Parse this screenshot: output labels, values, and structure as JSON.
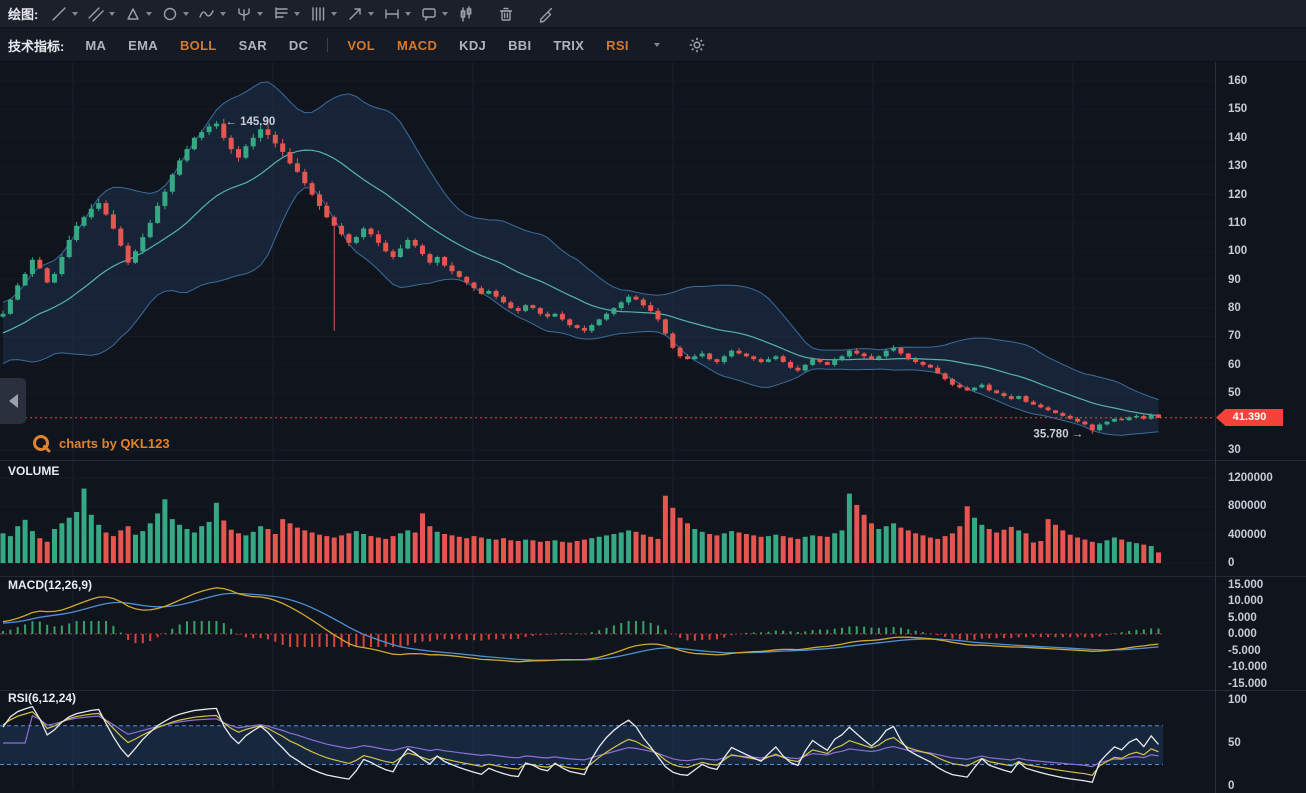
{
  "toolbar": {
    "drawing_label": "绘图:",
    "indicators_label": "技术指标:",
    "drawing_tools": [
      {
        "name": "trend-line",
        "caret": true
      },
      {
        "name": "parallel-lines",
        "caret": true
      },
      {
        "name": "polygon",
        "caret": true
      },
      {
        "name": "ellipse",
        "caret": true
      },
      {
        "name": "wave",
        "caret": true
      },
      {
        "name": "pitchfork",
        "caret": true
      },
      {
        "name": "horizontal-lines",
        "caret": true
      },
      {
        "name": "vertical-lines",
        "caret": true
      },
      {
        "name": "arrow",
        "caret": true
      },
      {
        "name": "measure",
        "caret": true
      },
      {
        "name": "callout",
        "caret": true
      },
      {
        "name": "chart-style",
        "caret": false
      },
      {
        "name": "delete-drawing",
        "caret": false
      },
      {
        "name": "pen",
        "caret": false
      }
    ],
    "indicators": [
      {
        "label": "MA",
        "active": false
      },
      {
        "label": "EMA",
        "active": false
      },
      {
        "label": "BOLL",
        "active": true
      },
      {
        "label": "SAR",
        "active": false
      },
      {
        "label": "DC",
        "active": false
      },
      {
        "type": "divider"
      },
      {
        "label": "VOL",
        "active": true
      },
      {
        "label": "MACD",
        "active": true
      },
      {
        "label": "KDJ",
        "active": false
      },
      {
        "label": "BBI",
        "active": false
      },
      {
        "label": "TRIX",
        "active": false
      },
      {
        "label": "RSI",
        "active": true
      }
    ]
  },
  "watermark": {
    "text": "charts by QKL123"
  },
  "panes": {
    "volume_label": "VOLUME",
    "macd_label": "MACD(12,26,9)",
    "rsi_label": "RSI(6,12,24)"
  },
  "chart_data": {
    "type": "candlestick",
    "last_price_label": "41.390",
    "last_price": 41.39,
    "annotations": [
      {
        "index": 29,
        "value": 145.9,
        "text": "← 145.90",
        "side": "right"
      },
      {
        "index": 148,
        "value": 35.78,
        "text": "35.780 →",
        "side": "left"
      }
    ],
    "overrides": {
      "29": {
        "high": 145.9
      },
      "45": {
        "low": 72
      },
      "148": {
        "low": 35.78
      }
    },
    "pre_closes": [
      62,
      60,
      63,
      65,
      64,
      66,
      68,
      67,
      70,
      72,
      71,
      73,
      75,
      74,
      76,
      77,
      75,
      78,
      76,
      77
    ],
    "closes": [
      78,
      83,
      88,
      92,
      97,
      94,
      89,
      92,
      98,
      104,
      109,
      112,
      115,
      117,
      113,
      108,
      102,
      96,
      100,
      105,
      110,
      116,
      121,
      127,
      132,
      136,
      140,
      142,
      144,
      145,
      140,
      136,
      133,
      137,
      140,
      143,
      141,
      138,
      135,
      131,
      128,
      124,
      120,
      116,
      112,
      109,
      106,
      103,
      105,
      108,
      106,
      103,
      100,
      98,
      101,
      104,
      102,
      99,
      96,
      98,
      95,
      93,
      91,
      89,
      87,
      85,
      86,
      84,
      82,
      80,
      79,
      81,
      80,
      78,
      77,
      78,
      76,
      74,
      73,
      72,
      74,
      76,
      78,
      80,
      82,
      84,
      83,
      81,
      79,
      76,
      71,
      66,
      63,
      62,
      63,
      64,
      62,
      61,
      63,
      65,
      64,
      63,
      62,
      61,
      62,
      63,
      61,
      59,
      58,
      60,
      62,
      61,
      60,
      62,
      63,
      65,
      64,
      63,
      62,
      63,
      65,
      66,
      64,
      62,
      61,
      60,
      59,
      57,
      55,
      53,
      52,
      51,
      52,
      53,
      51,
      50,
      49,
      48,
      49,
      47,
      46,
      45,
      44,
      43,
      42,
      41,
      40,
      39,
      37,
      39,
      40,
      41,
      40.5,
      41.5,
      42,
      41,
      42.5,
      41.39
    ],
    "volumes": [
      420000,
      380000,
      520000,
      610000,
      450000,
      350000,
      300000,
      480000,
      560000,
      640000,
      720000,
      1050000,
      680000,
      540000,
      430000,
      380000,
      460000,
      520000,
      400000,
      450000,
      560000,
      700000,
      900000,
      620000,
      540000,
      480000,
      430000,
      520000,
      580000,
      850000,
      600000,
      470000,
      420000,
      390000,
      440000,
      520000,
      480000,
      410000,
      620000,
      560000,
      500000,
      460000,
      430000,
      400000,
      380000,
      360000,
      390000,
      420000,
      450000,
      410000,
      380000,
      360000,
      340000,
      380000,
      420000,
      460000,
      430000,
      700000,
      520000,
      440000,
      410000,
      390000,
      370000,
      350000,
      380000,
      360000,
      340000,
      330000,
      350000,
      320000,
      310000,
      330000,
      320000,
      300000,
      310000,
      320000,
      300000,
      290000,
      310000,
      330000,
      350000,
      370000,
      390000,
      410000,
      430000,
      460000,
      440000,
      400000,
      370000,
      340000,
      950000,
      780000,
      640000,
      560000,
      480000,
      440000,
      410000,
      390000,
      420000,
      450000,
      430000,
      410000,
      390000,
      370000,
      380000,
      400000,
      380000,
      360000,
      340000,
      370000,
      390000,
      380000,
      370000,
      420000,
      460000,
      980000,
      820000,
      680000,
      560000,
      480000,
      520000,
      560000,
      500000,
      460000,
      420000,
      390000,
      360000,
      340000,
      380000,
      420000,
      520000,
      800000,
      640000,
      540000,
      480000,
      430000,
      470000,
      510000,
      460000,
      420000,
      290000,
      310000,
      620000,
      540000,
      460000,
      400000,
      360000,
      330000,
      300000,
      280000,
      320000,
      360000,
      330000,
      300000,
      280000,
      260000,
      240000,
      150000
    ],
    "indicators": {
      "boll": {
        "period": 20,
        "mult": 2
      },
      "macd": {
        "fast": 12,
        "slow": 26,
        "signal": 9
      },
      "rsi": {
        "periods": [
          6,
          12,
          24
        ],
        "bands": [
          70,
          25
        ]
      }
    },
    "axes": {
      "price_ticks": [
        {
          "label": "160",
          "value": 160
        },
        {
          "label": "150",
          "value": 150
        },
        {
          "label": "140",
          "value": 140
        },
        {
          "label": "130",
          "value": 130
        },
        {
          "label": "120",
          "value": 120
        },
        {
          "label": "110",
          "value": 110
        },
        {
          "label": "100",
          "value": 100
        },
        {
          "label": "90",
          "value": 90
        },
        {
          "label": "80",
          "value": 80
        },
        {
          "label": "70",
          "value": 70
        },
        {
          "label": "60",
          "value": 60
        },
        {
          "label": "50",
          "value": 50
        },
        {
          "label": "30",
          "value": 30
        }
      ],
      "volume_ticks": [
        {
          "label": "1200000",
          "value": 1200000
        },
        {
          "label": "800000",
          "value": 800000
        },
        {
          "label": "400000",
          "value": 400000
        },
        {
          "label": "0",
          "value": 0
        }
      ],
      "macd_ticks": [
        {
          "label": "15.000",
          "value": 15
        },
        {
          "label": "10.000",
          "value": 10
        },
        {
          "label": "5.000",
          "value": 5
        },
        {
          "label": "0.000",
          "value": 0
        },
        {
          "label": "-5.000",
          "value": -5
        },
        {
          "label": "-10.000",
          "value": -10
        },
        {
          "label": "-15.000",
          "value": -15
        }
      ],
      "rsi_ticks": [
        {
          "label": "100",
          "value": 100
        },
        {
          "label": "50",
          "value": 50
        },
        {
          "label": "0",
          "value": 0
        }
      ]
    },
    "colors": {
      "up": "#35a983",
      "down": "#e4564f",
      "boll_fill": "rgba(54,99,158,0.20)",
      "boll_edge": "#3b6c9c",
      "boll_mid": "#57b2ad",
      "macd_dif": "#cfa832",
      "macd_dea": "#4f8fd0",
      "hist_up": "#3aa06a",
      "hist_down": "#d8423c",
      "price_line": "#f2423a",
      "rsi6": "#e8eaf0",
      "rsi12": "#d3c34b",
      "rsi24": "#8d6fd6",
      "rsi_band_fill": "rgba(42,90,150,0.28)",
      "rsi_band_line": "#4a90d9",
      "accent_orange": "#d4792e",
      "axis_text": "#c6cbd5",
      "grid": "#1a1f2b"
    }
  }
}
